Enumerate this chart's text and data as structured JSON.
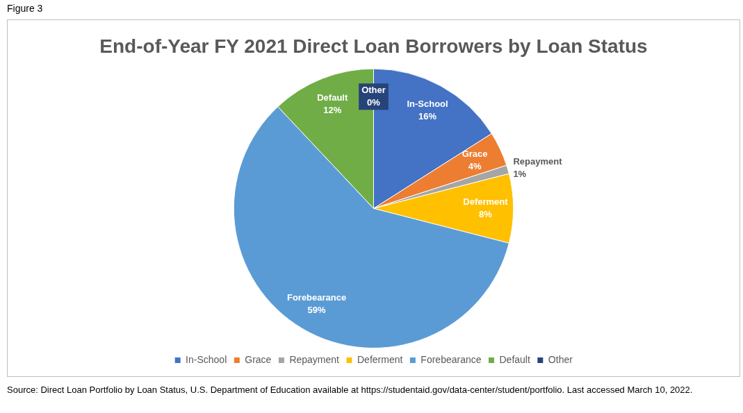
{
  "chart_data": {
    "type": "pie",
    "title": "End-of-Year FY 2021 Direct Loan Borrowers by Loan Status",
    "categories": [
      "In-School",
      "Grace",
      "Repayment",
      "Deferment",
      "Forebearance",
      "Default",
      "Other"
    ],
    "values": [
      16,
      4,
      1,
      8,
      59,
      12,
      0
    ],
    "value_labels": [
      "16%",
      "4%",
      "1%",
      "8%",
      "59%",
      "12%",
      "0%"
    ],
    "colors": [
      "#4472c4",
      "#ed7d31",
      "#a5a5a5",
      "#ffc000",
      "#5b9bd5",
      "#70ad47",
      "#264478"
    ],
    "legend": "bottom",
    "annotations": [
      "Figure 3",
      "Source: Direct Loan Portfolio by Loan Status, U.S. Department of Education available at https://studentaid.gov/data-center/student/portfolio. Last accessed March 10, 2022."
    ]
  }
}
